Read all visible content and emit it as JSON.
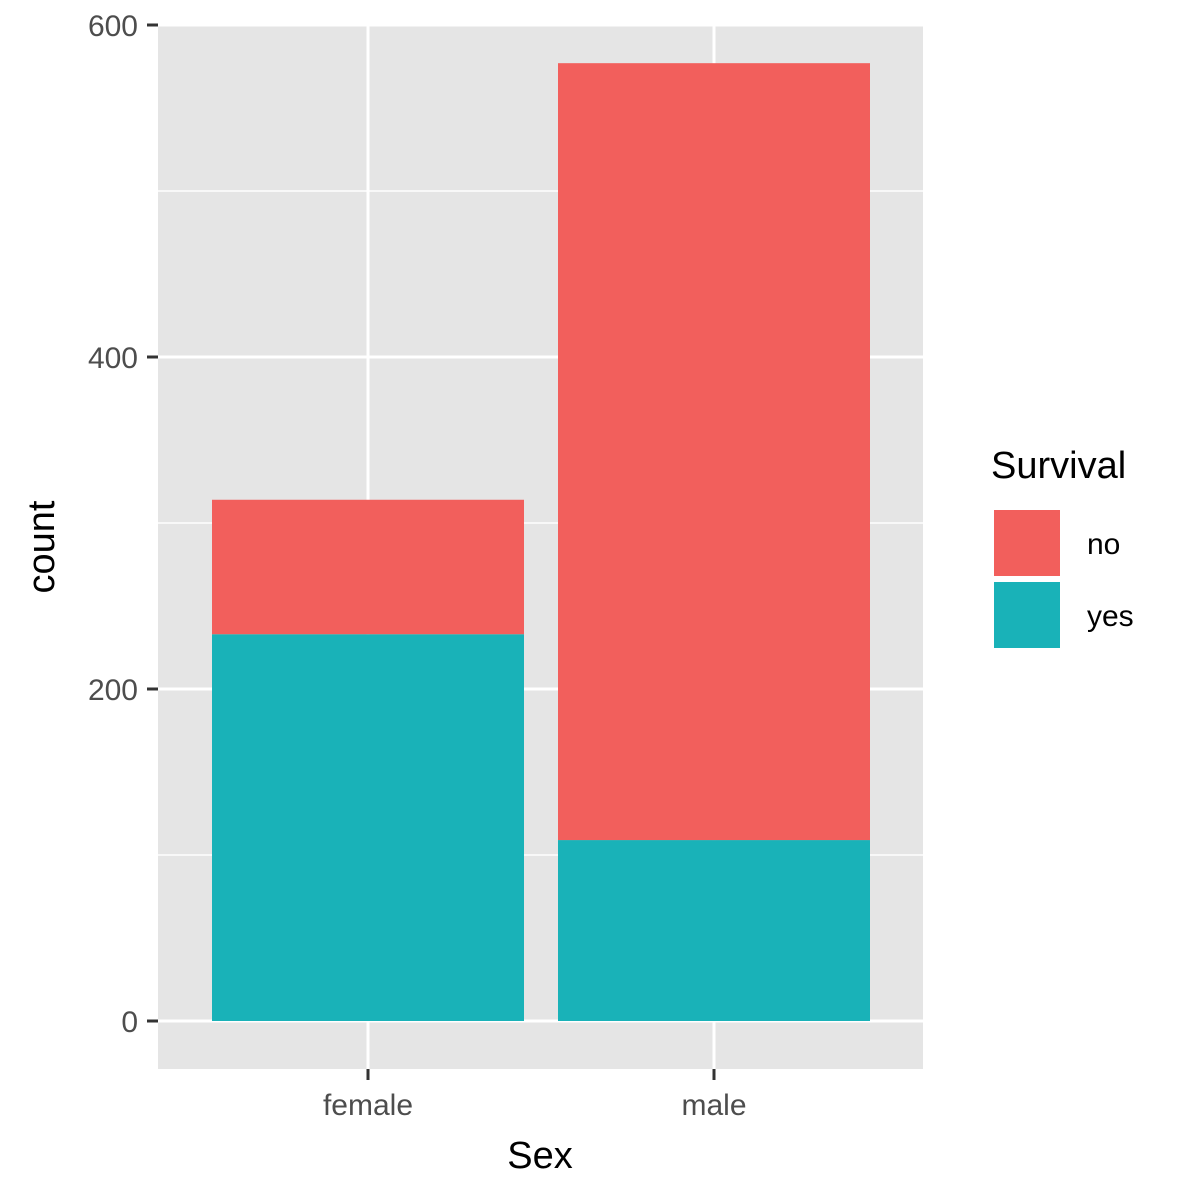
{
  "chart_data": {
    "type": "bar",
    "stacked": true,
    "categories": [
      "female",
      "male"
    ],
    "series": [
      {
        "name": "no",
        "values": [
          81,
          468
        ],
        "color": "#F25F5C"
      },
      {
        "name": "yes",
        "values": [
          233,
          109
        ],
        "color": "#19B2B8"
      }
    ],
    "xlabel": "Sex",
    "ylabel": "count",
    "ylim": [
      0,
      600
    ],
    "yticks": [
      0,
      200,
      400,
      600
    ],
    "grid": true,
    "legend": {
      "title": "Survival",
      "position": "right",
      "entries": [
        "no",
        "yes"
      ]
    },
    "colors": {
      "panel_background": "#E5E5E5",
      "grid_line": "#FFFFFF",
      "tick_mark": "#333333",
      "tick_text": "#4D4D4D"
    }
  }
}
